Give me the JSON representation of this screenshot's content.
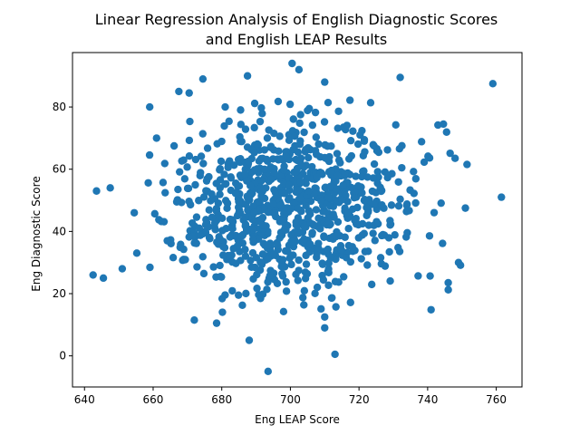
{
  "chart_data": {
    "type": "scatter",
    "title_lines": [
      "Linear Regression Analysis of English Diagnostic Scores",
      "and English LEAP Results"
    ],
    "xlabel": "Eng LEAP Score",
    "ylabel": "Eng Diagnostic Score",
    "xlim": [
      636.5,
      767.5
    ],
    "ylim": [
      -10,
      97.5
    ],
    "xticks": [
      640,
      660,
      680,
      700,
      720,
      740,
      760
    ],
    "yticks": [
      0,
      20,
      40,
      60,
      80
    ],
    "grid": false,
    "legend": "none",
    "marker_color": "#1f77b4",
    "notable_points": [
      {
        "x": 643.5,
        "y": 53
      },
      {
        "x": 647.5,
        "y": 54
      },
      {
        "x": 642.5,
        "y": 26
      },
      {
        "x": 645.5,
        "y": 25
      },
      {
        "x": 651,
        "y": 28
      },
      {
        "x": 654.5,
        "y": 46
      },
      {
        "x": 659,
        "y": 80
      },
      {
        "x": 661,
        "y": 70
      },
      {
        "x": 667.5,
        "y": 85
      },
      {
        "x": 670.5,
        "y": 84.5
      },
      {
        "x": 674.5,
        "y": 89
      },
      {
        "x": 681,
        "y": 80
      },
      {
        "x": 687.5,
        "y": 90
      },
      {
        "x": 700.5,
        "y": 94
      },
      {
        "x": 702.5,
        "y": 92
      },
      {
        "x": 710,
        "y": 88
      },
      {
        "x": 732,
        "y": 89.5
      },
      {
        "x": 759,
        "y": 87.5
      },
      {
        "x": 761.5,
        "y": 51
      },
      {
        "x": 688,
        "y": 5
      },
      {
        "x": 693.5,
        "y": -5
      },
      {
        "x": 713,
        "y": 0.5
      },
      {
        "x": 710,
        "y": 9
      },
      {
        "x": 710,
        "y": 12.5
      },
      {
        "x": 672,
        "y": 11.5
      },
      {
        "x": 678.5,
        "y": 10.5
      },
      {
        "x": 746,
        "y": 23.5
      },
      {
        "x": 749,
        "y": 30
      },
      {
        "x": 751,
        "y": 47.5
      },
      {
        "x": 748,
        "y": 63.5
      }
    ],
    "cluster": {
      "x_mean": 700,
      "x_sd": 18,
      "y_mean": 48,
      "y_sd": 14,
      "count": 900
    }
  }
}
